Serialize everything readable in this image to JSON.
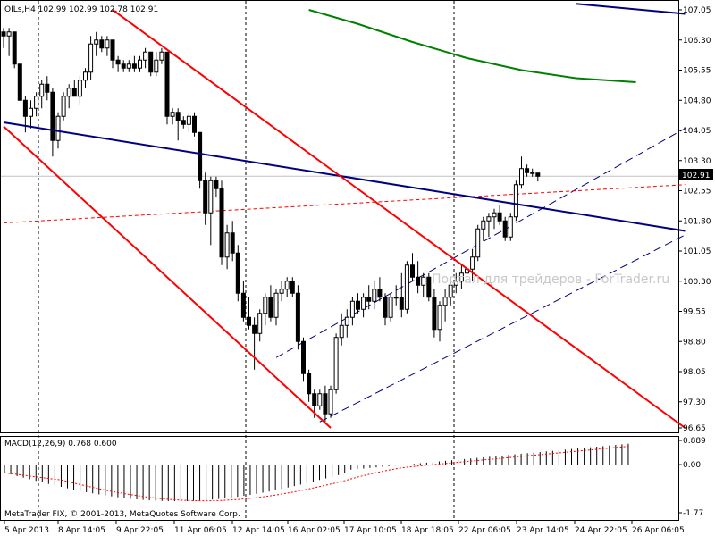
{
  "header": {
    "text": "OILs,H4  102.99 102.99 102.78 102.91"
  },
  "macd_header": {
    "text": "MACD(12,26,9) 0.768 0.600"
  },
  "copyright": "MetaTrader FIX, © 2001-2013, MetaQuotes Software Corp.",
  "watermark": "Портал для трейдеров - ForTrader.ru",
  "current_price_label": "102.91",
  "colors": {
    "up_candle_body": "#ffffff",
    "down_candle_body": "#000000",
    "channel_red": "#ff0000",
    "trendline_blue": "#000080",
    "ma_green": "#008000",
    "channel_dashed": "#000080",
    "macd_signal": "#ff0000"
  },
  "chart_data": [
    {
      "type": "candlestick",
      "symbol": "OILs",
      "timeframe": "H4",
      "current_price": 102.91,
      "ylim": [
        96.65,
        107.05
      ],
      "y_tick_labels": [
        "107.05",
        "106.30",
        "105.55",
        "104.80",
        "104.05",
        "103.30",
        "102.55",
        "101.80",
        "101.05",
        "100.30",
        "99.55",
        "98.80",
        "98.05",
        "97.30",
        "96.65"
      ],
      "x_tick_labels": [
        "5 Apr 2013",
        "8 Apr 14:05",
        "9 Apr 22:05",
        "11 Apr 06:05",
        "12 Apr 14:05",
        "16 Apr 02:05",
        "17 Apr 10:05",
        "18 Apr 18:05",
        "22 Apr 06:05",
        "23 Apr 14:05",
        "24 Apr 22:05",
        "26 Apr 06:05"
      ],
      "grid": false,
      "candles": [
        {
          "o": 106.5,
          "h": 106.6,
          "l": 106.1,
          "c": 106.4
        },
        {
          "o": 106.4,
          "h": 106.6,
          "l": 105.9,
          "c": 106.5
        },
        {
          "o": 106.5,
          "h": 106.5,
          "l": 105.6,
          "c": 105.7
        },
        {
          "o": 105.7,
          "h": 105.7,
          "l": 104.8,
          "c": 104.8
        },
        {
          "o": 104.8,
          "h": 104.9,
          "l": 104.0,
          "c": 104.4
        },
        {
          "o": 104.4,
          "h": 104.8,
          "l": 104.1,
          "c": 104.6
        },
        {
          "o": 104.6,
          "h": 105.0,
          "l": 104.4,
          "c": 104.9
        },
        {
          "o": 104.9,
          "h": 105.3,
          "l": 104.6,
          "c": 105.2
        },
        {
          "o": 105.2,
          "h": 105.4,
          "l": 104.8,
          "c": 105.0
        },
        {
          "o": 105.0,
          "h": 105.1,
          "l": 103.4,
          "c": 103.8
        },
        {
          "o": 103.8,
          "h": 104.5,
          "l": 103.6,
          "c": 104.4
        },
        {
          "o": 104.4,
          "h": 105.0,
          "l": 104.3,
          "c": 104.9
        },
        {
          "o": 104.9,
          "h": 105.2,
          "l": 104.6,
          "c": 105.1
        },
        {
          "o": 105.1,
          "h": 105.3,
          "l": 104.9,
          "c": 104.9
        },
        {
          "o": 104.9,
          "h": 105.4,
          "l": 104.7,
          "c": 105.3
        },
        {
          "o": 105.3,
          "h": 105.6,
          "l": 105.1,
          "c": 105.5
        },
        {
          "o": 105.5,
          "h": 106.4,
          "l": 105.3,
          "c": 106.2
        },
        {
          "o": 106.2,
          "h": 106.5,
          "l": 105.9,
          "c": 106.3
        },
        {
          "o": 106.3,
          "h": 106.4,
          "l": 106.0,
          "c": 106.1
        },
        {
          "o": 106.1,
          "h": 106.4,
          "l": 105.9,
          "c": 106.3
        },
        {
          "o": 106.3,
          "h": 106.3,
          "l": 105.6,
          "c": 105.8
        },
        {
          "o": 105.8,
          "h": 105.9,
          "l": 105.5,
          "c": 105.7
        },
        {
          "o": 105.7,
          "h": 105.8,
          "l": 105.5,
          "c": 105.6
        },
        {
          "o": 105.6,
          "h": 105.8,
          "l": 105.5,
          "c": 105.7
        },
        {
          "o": 105.7,
          "h": 105.9,
          "l": 105.5,
          "c": 105.6
        },
        {
          "o": 105.6,
          "h": 105.9,
          "l": 105.5,
          "c": 105.8
        },
        {
          "o": 105.8,
          "h": 106.1,
          "l": 105.6,
          "c": 106.0
        },
        {
          "o": 106.0,
          "h": 106.0,
          "l": 105.4,
          "c": 105.5
        },
        {
          "o": 105.5,
          "h": 106.0,
          "l": 105.4,
          "c": 105.8
        },
        {
          "o": 105.8,
          "h": 106.1,
          "l": 105.7,
          "c": 106.0
        },
        {
          "o": 106.0,
          "h": 106.0,
          "l": 104.2,
          "c": 104.4
        },
        {
          "o": 104.4,
          "h": 104.6,
          "l": 104.2,
          "c": 104.5
        },
        {
          "o": 104.5,
          "h": 104.6,
          "l": 103.8,
          "c": 104.3
        },
        {
          "o": 104.3,
          "h": 104.4,
          "l": 104.1,
          "c": 104.2
        },
        {
          "o": 104.2,
          "h": 104.5,
          "l": 104.0,
          "c": 104.4
        },
        {
          "o": 104.4,
          "h": 104.5,
          "l": 103.9,
          "c": 104.0
        },
        {
          "o": 104.0,
          "h": 104.0,
          "l": 102.6,
          "c": 102.8
        },
        {
          "o": 102.8,
          "h": 103.0,
          "l": 101.7,
          "c": 102.0
        },
        {
          "o": 102.0,
          "h": 102.9,
          "l": 101.2,
          "c": 102.8
        },
        {
          "o": 102.8,
          "h": 102.9,
          "l": 102.4,
          "c": 102.6
        },
        {
          "o": 102.6,
          "h": 102.8,
          "l": 100.7,
          "c": 100.9
        },
        {
          "o": 100.9,
          "h": 101.7,
          "l": 100.6,
          "c": 101.5
        },
        {
          "o": 101.5,
          "h": 101.8,
          "l": 100.8,
          "c": 101.0
        },
        {
          "o": 101.0,
          "h": 101.2,
          "l": 99.8,
          "c": 100.0
        },
        {
          "o": 100.0,
          "h": 100.3,
          "l": 99.3,
          "c": 99.4
        },
        {
          "o": 99.4,
          "h": 99.9,
          "l": 99.1,
          "c": 99.2
        },
        {
          "o": 99.2,
          "h": 99.4,
          "l": 98.1,
          "c": 99.0
        },
        {
          "o": 99.0,
          "h": 99.6,
          "l": 98.8,
          "c": 99.5
        },
        {
          "o": 99.5,
          "h": 100.0,
          "l": 99.2,
          "c": 99.9
        },
        {
          "o": 99.9,
          "h": 100.2,
          "l": 99.3,
          "c": 99.4
        },
        {
          "o": 99.4,
          "h": 100.1,
          "l": 99.2,
          "c": 100.0
        },
        {
          "o": 100.0,
          "h": 100.3,
          "l": 99.8,
          "c": 100.1
        },
        {
          "o": 100.1,
          "h": 100.4,
          "l": 99.9,
          "c": 100.3
        },
        {
          "o": 100.3,
          "h": 100.4,
          "l": 99.9,
          "c": 100.0
        },
        {
          "o": 100.0,
          "h": 100.2,
          "l": 98.6,
          "c": 98.8
        },
        {
          "o": 98.8,
          "h": 98.9,
          "l": 97.8,
          "c": 98.0
        },
        {
          "o": 98.0,
          "h": 98.1,
          "l": 97.3,
          "c": 97.5
        },
        {
          "o": 97.5,
          "h": 97.6,
          "l": 96.9,
          "c": 97.2
        },
        {
          "o": 97.2,
          "h": 97.6,
          "l": 97.1,
          "c": 97.5
        },
        {
          "o": 97.5,
          "h": 97.7,
          "l": 96.8,
          "c": 97.0
        },
        {
          "o": 97.0,
          "h": 97.7,
          "l": 96.9,
          "c": 97.6
        },
        {
          "o": 97.6,
          "h": 99.0,
          "l": 97.5,
          "c": 98.9
        },
        {
          "o": 98.9,
          "h": 99.5,
          "l": 98.7,
          "c": 99.2
        },
        {
          "o": 99.2,
          "h": 99.6,
          "l": 98.9,
          "c": 99.4
        },
        {
          "o": 99.4,
          "h": 99.9,
          "l": 99.2,
          "c": 99.8
        },
        {
          "o": 99.8,
          "h": 100.0,
          "l": 99.5,
          "c": 99.6
        },
        {
          "o": 99.6,
          "h": 100.0,
          "l": 99.4,
          "c": 99.9
        },
        {
          "o": 99.9,
          "h": 100.2,
          "l": 99.6,
          "c": 99.8
        },
        {
          "o": 99.8,
          "h": 100.3,
          "l": 99.6,
          "c": 100.1
        },
        {
          "o": 100.1,
          "h": 100.4,
          "l": 99.8,
          "c": 99.9
        },
        {
          "o": 99.9,
          "h": 100.0,
          "l": 99.2,
          "c": 99.4
        },
        {
          "o": 99.4,
          "h": 100.0,
          "l": 99.3,
          "c": 99.9
        },
        {
          "o": 99.9,
          "h": 100.2,
          "l": 99.7,
          "c": 99.9
        },
        {
          "o": 99.9,
          "h": 100.5,
          "l": 99.4,
          "c": 99.6
        },
        {
          "o": 99.6,
          "h": 100.8,
          "l": 99.5,
          "c": 100.7
        },
        {
          "o": 100.7,
          "h": 101.0,
          "l": 100.3,
          "c": 100.4
        },
        {
          "o": 100.4,
          "h": 100.8,
          "l": 100.0,
          "c": 100.2
        },
        {
          "o": 100.2,
          "h": 100.5,
          "l": 99.9,
          "c": 100.4
        },
        {
          "o": 100.4,
          "h": 100.5,
          "l": 99.8,
          "c": 99.9
        },
        {
          "o": 99.9,
          "h": 100.1,
          "l": 98.9,
          "c": 99.1
        },
        {
          "o": 99.1,
          "h": 99.8,
          "l": 98.8,
          "c": 99.7
        },
        {
          "o": 99.7,
          "h": 100.1,
          "l": 99.3,
          "c": 99.9
        },
        {
          "o": 99.9,
          "h": 100.4,
          "l": 99.7,
          "c": 100.2
        },
        {
          "o": 100.2,
          "h": 100.5,
          "l": 100.0,
          "c": 100.3
        },
        {
          "o": 100.3,
          "h": 100.7,
          "l": 100.1,
          "c": 100.5
        },
        {
          "o": 100.5,
          "h": 100.8,
          "l": 100.2,
          "c": 100.6
        },
        {
          "o": 100.6,
          "h": 101.1,
          "l": 100.3,
          "c": 100.9
        },
        {
          "o": 100.9,
          "h": 101.7,
          "l": 100.8,
          "c": 101.6
        },
        {
          "o": 101.6,
          "h": 101.9,
          "l": 101.3,
          "c": 101.8
        },
        {
          "o": 101.8,
          "h": 102.0,
          "l": 101.4,
          "c": 101.9
        },
        {
          "o": 101.9,
          "h": 102.1,
          "l": 101.6,
          "c": 102.0
        },
        {
          "o": 102.0,
          "h": 102.2,
          "l": 101.7,
          "c": 101.8
        },
        {
          "o": 101.8,
          "h": 101.9,
          "l": 101.3,
          "c": 101.4
        },
        {
          "o": 101.4,
          "h": 102.0,
          "l": 101.3,
          "c": 101.9
        },
        {
          "o": 101.9,
          "h": 102.8,
          "l": 101.8,
          "c": 102.7
        },
        {
          "o": 102.7,
          "h": 103.4,
          "l": 102.6,
          "c": 103.1
        },
        {
          "o": 103.1,
          "h": 103.2,
          "l": 102.9,
          "c": 103.0
        },
        {
          "o": 103.0,
          "h": 103.1,
          "l": 102.9,
          "c": 103.0
        },
        {
          "o": 102.99,
          "h": 102.99,
          "l": 102.78,
          "c": 102.91
        }
      ],
      "lines": {
        "blue_trendline": {
          "p1": {
            "bar": 0,
            "price": 104.25
          },
          "p2": {
            "bar": 125,
            "price": 101.55
          }
        },
        "red_channel_upper": {
          "p1": {
            "bar": 20,
            "price": 107.05
          },
          "p2": {
            "bar": 125,
            "price": 96.65
          }
        },
        "red_channel_lower": {
          "p1": {
            "bar": 0,
            "price": 104.15
          },
          "p2": {
            "bar": 60,
            "price": 96.65
          }
        },
        "red_dashed": {
          "p1": {
            "bar": 0,
            "price": 101.75
          },
          "p2": {
            "bar": 125,
            "price": 102.7
          }
        },
        "dashed_channel_upper": {
          "p1": {
            "bar": 50,
            "price": 98.4
          },
          "p2": {
            "bar": 125,
            "price": 104.1
          }
        },
        "dashed_channel_lower": {
          "p1": {
            "bar": 58,
            "price": 96.8
          },
          "p2": {
            "bar": 125,
            "price": 101.45
          }
        },
        "green_ma": [
          {
            "bar": 56,
            "price": 107.05
          },
          {
            "bar": 65,
            "price": 106.7
          },
          {
            "bar": 75,
            "price": 106.25
          },
          {
            "bar": 85,
            "price": 105.85
          },
          {
            "bar": 95,
            "price": 105.55
          },
          {
            "bar": 105,
            "price": 105.35
          },
          {
            "bar": 116,
            "price": 105.25
          }
        ],
        "blue_top": {
          "p1": {
            "bar": 105,
            "price": 107.2
          },
          "p2": {
            "bar": 125,
            "price": 106.95
          }
        }
      }
    },
    {
      "type": "bar",
      "indicator": "MACD",
      "parameters": "12,26,9",
      "ylim": [
        -1.77,
        0.889
      ],
      "y_tick_labels": [
        "0.889",
        "0.00",
        "-1.77"
      ],
      "bar_count": 100,
      "main_value": 0.768,
      "signal_value": 0.6
    }
  ]
}
